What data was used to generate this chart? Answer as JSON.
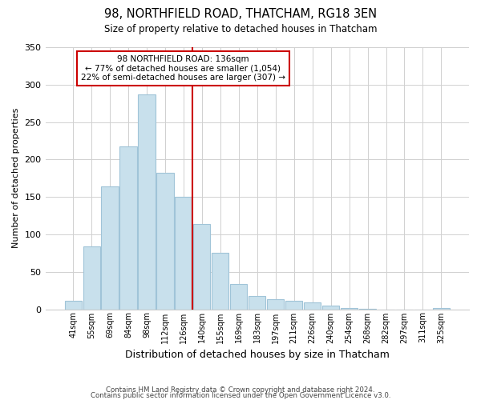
{
  "title": "98, NORTHFIELD ROAD, THATCHAM, RG18 3EN",
  "subtitle": "Size of property relative to detached houses in Thatcham",
  "xlabel": "Distribution of detached houses by size in Thatcham",
  "ylabel": "Number of detached properties",
  "bar_labels": [
    "41sqm",
    "55sqm",
    "69sqm",
    "84sqm",
    "98sqm",
    "112sqm",
    "126sqm",
    "140sqm",
    "155sqm",
    "169sqm",
    "183sqm",
    "197sqm",
    "211sqm",
    "226sqm",
    "240sqm",
    "254sqm",
    "268sqm",
    "282sqm",
    "297sqm",
    "311sqm",
    "325sqm"
  ],
  "bar_heights": [
    11,
    84,
    164,
    218,
    287,
    182,
    150,
    114,
    75,
    34,
    18,
    13,
    11,
    9,
    5,
    2,
    1,
    0,
    0,
    0,
    2
  ],
  "bar_color": "#c8e0ec",
  "bar_edge_color": "#a0c4d8",
  "vline_color": "#cc0000",
  "vline_x_index": 7,
  "annotation_title": "98 NORTHFIELD ROAD: 136sqm",
  "annotation_line1": "← 77% of detached houses are smaller (1,054)",
  "annotation_line2": "22% of semi-detached houses are larger (307) →",
  "annotation_box_edgecolor": "#cc0000",
  "ylim": [
    0,
    350
  ],
  "yticks": [
    0,
    50,
    100,
    150,
    200,
    250,
    300,
    350
  ],
  "footer1": "Contains HM Land Registry data © Crown copyright and database right 2024.",
  "footer2": "Contains public sector information licensed under the Open Government Licence v3.0."
}
